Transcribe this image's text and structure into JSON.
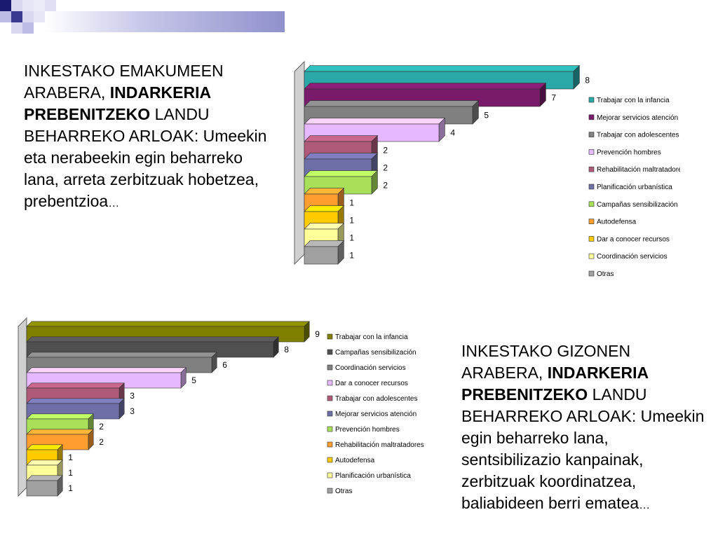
{
  "text_left": {
    "part1": "INKESTAKO EMAKUMEEN ARABERA, ",
    "bold1": "INDARKERIA PREBENITZEKO",
    "part2": " LANDU BEHARREKO ARLOAK: Umeekin eta nerabeekin egin beharreko lana, arreta zerbitzuak hobetzea, prebentzioa",
    "ellipsis": "…"
  },
  "text_right": {
    "part1": "INKESTAKO GIZONEN ARABERA, ",
    "bold1": "INDARKERIA PREBENITZEKO",
    "part2": " LANDU BEHARREKO ARLOAK: Umeekin egin beharreko lana, sentsibilizazio kanpainak, zerbitzuak koordinatzea, baliabideen berri ematea",
    "ellipsis": "…"
  },
  "chart_data": [
    {
      "type": "bar",
      "orientation": "horizontal",
      "style": "3d",
      "legend_position": "right",
      "categories": [
        "Trabajar con la infancia",
        "Mejorar servicios atención",
        "Trabajar con adolescentes",
        "Prevención hombres",
        "Rehabilitación maltratadores",
        "Planificación urbanística",
        "Campañas sensibilización",
        "Autodefensa",
        "Dar a conocer recursos",
        "Coordinación servicios",
        "Otras"
      ],
      "values": [
        8,
        7,
        5,
        4,
        2,
        2,
        2,
        1,
        1,
        1,
        1
      ],
      "colors": [
        "#2aa7a7",
        "#7a1a6a",
        "#808080",
        "#e6b8ff",
        "#b05a7a",
        "#6f6fa8",
        "#a8e05a",
        "#ff9d2e",
        "#ffcc00",
        "#ffff99",
        "#a0a0a0"
      ]
    },
    {
      "type": "bar",
      "orientation": "horizontal",
      "style": "3d",
      "legend_position": "right",
      "categories": [
        "Trabajar con la infancia",
        "Campañas sensibilización",
        "Coordinación servicios",
        "Dar a conocer recursos",
        "Trabajar con adolescentes",
        "Mejorar servicios atención",
        "Prevención hombres",
        "Rehabilitación maltratadores",
        "Autodefensa",
        "Planificación urbanística",
        "Otras"
      ],
      "values": [
        9,
        8,
        6,
        5,
        3,
        3,
        2,
        2,
        1,
        1,
        1
      ],
      "colors": [
        "#808000",
        "#505050",
        "#808080",
        "#e6b8ff",
        "#b05a7a",
        "#6f6fa8",
        "#a8e05a",
        "#ff9d2e",
        "#ffcc00",
        "#ffff99",
        "#a0a0a0"
      ]
    }
  ]
}
